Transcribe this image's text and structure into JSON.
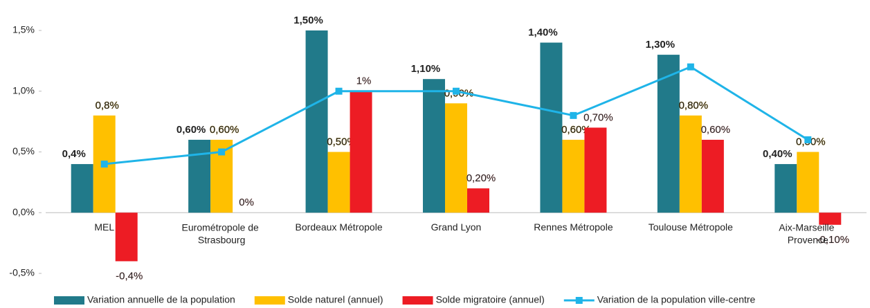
{
  "chart_data": {
    "type": "bar",
    "categories": [
      "MEL",
      "Eurométropole de Strasbourg",
      "Bordeaux Métropole",
      "Grand Lyon",
      "Rennes Métropole",
      "Toulouse Métropole",
      "Aix-Marseille Provence"
    ],
    "series": [
      {
        "name": "Variation annuelle de la population",
        "color": "#217a8a",
        "values": [
          0.4,
          0.6,
          1.5,
          1.1,
          1.4,
          1.3,
          0.4
        ],
        "value_labels": [
          "0,4%",
          "0,60%",
          "1,50%",
          "1,10%",
          "1,40%",
          "1,30%",
          "0,40%"
        ]
      },
      {
        "name": "Solde naturel (annuel)",
        "color": "#ffc000",
        "values": [
          0.8,
          0.6,
          0.5,
          0.9,
          0.6,
          0.8,
          0.5
        ],
        "value_labels": [
          "0,8%",
          "0,60%",
          "0,50%",
          "0,90%",
          "0,60%",
          "0,80%",
          "0,50%"
        ]
      },
      {
        "name": "Solde migratoire (annuel)",
        "color": "#ed1c24",
        "values": [
          -0.4,
          0,
          1,
          0.2,
          0.7,
          0.6,
          -0.1
        ],
        "value_labels": [
          "-0,4%",
          "0%",
          "1%",
          "0,20%",
          "0,70%",
          "0,60%",
          "-0,10%"
        ]
      },
      {
        "name": "Variation de la population ville-centre",
        "color": "#1fb4e8",
        "type": "line",
        "values": [
          0.4,
          0.5,
          1.0,
          1.0,
          0.8,
          1.2,
          0.6
        ]
      }
    ],
    "ylim": [
      -0.5,
      1.5
    ],
    "yticks": [
      {
        "value": -0.5,
        "label": "-0,5%"
      },
      {
        "value": 0,
        "label": "0,0%"
      },
      {
        "value": 0.5,
        "label": "0,5%"
      },
      {
        "value": 1,
        "label": "1,0%"
      },
      {
        "value": 1.5,
        "label": "1,5%"
      }
    ],
    "legend": "bottom"
  }
}
